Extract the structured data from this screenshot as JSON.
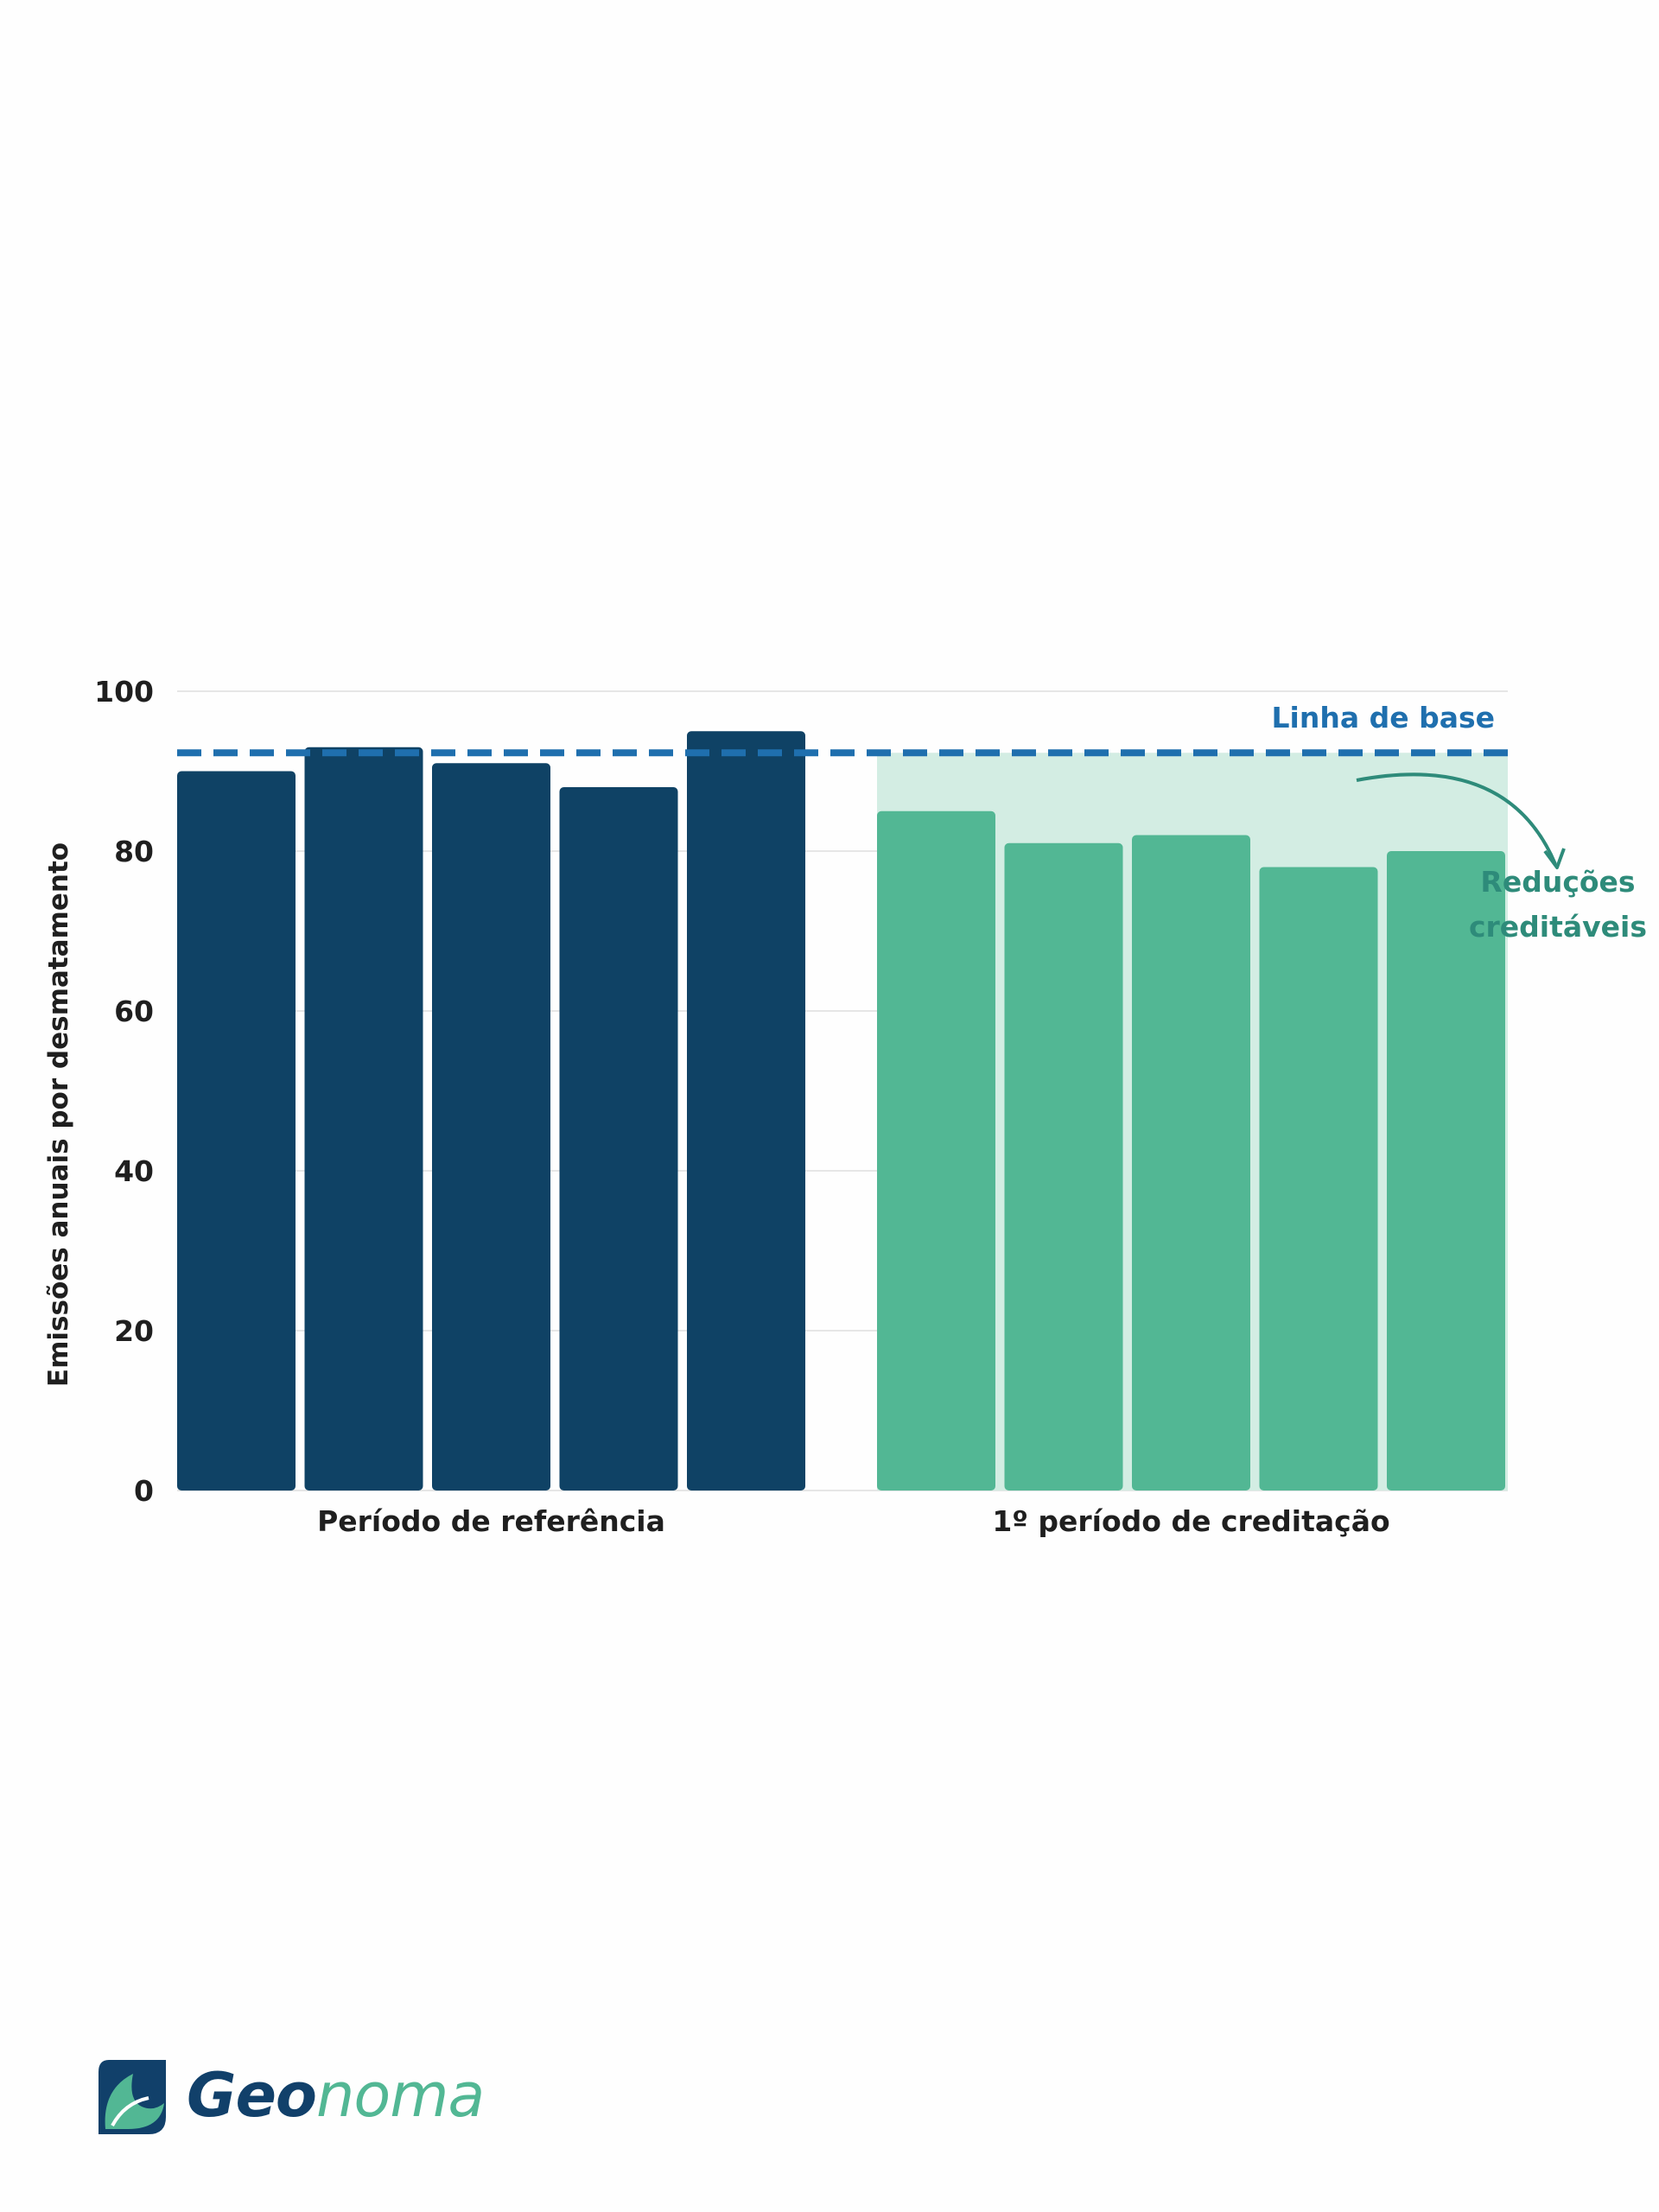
{
  "chart_data": {
    "type": "bar",
    "title": "",
    "xlabel": "",
    "ylabel": "Emissões anuais por desmatamento",
    "ylim": [
      0,
      100
    ],
    "yticks": [
      0,
      20,
      40,
      60,
      80,
      100
    ],
    "grid": true,
    "groups": [
      {
        "label": "Período de referência",
        "color": "#0f4265",
        "values": [
          90,
          93,
          91,
          88,
          95
        ]
      },
      {
        "label": "1º período de creditação",
        "color": "#52b794",
        "values": [
          85,
          81,
          82,
          78,
          80
        ]
      }
    ],
    "baseline": {
      "label": "Linha de base",
      "value": 92.3,
      "color": "#1f6fae"
    },
    "annotation": {
      "lines": [
        "Reduções",
        "creditáveis"
      ],
      "color": "#2e8b7a",
      "shade_color": "#d3ede3"
    }
  },
  "logo": {
    "part1": "Geo",
    "part2": "noma",
    "color_dark": "#11406a",
    "color_light": "#52b794"
  }
}
